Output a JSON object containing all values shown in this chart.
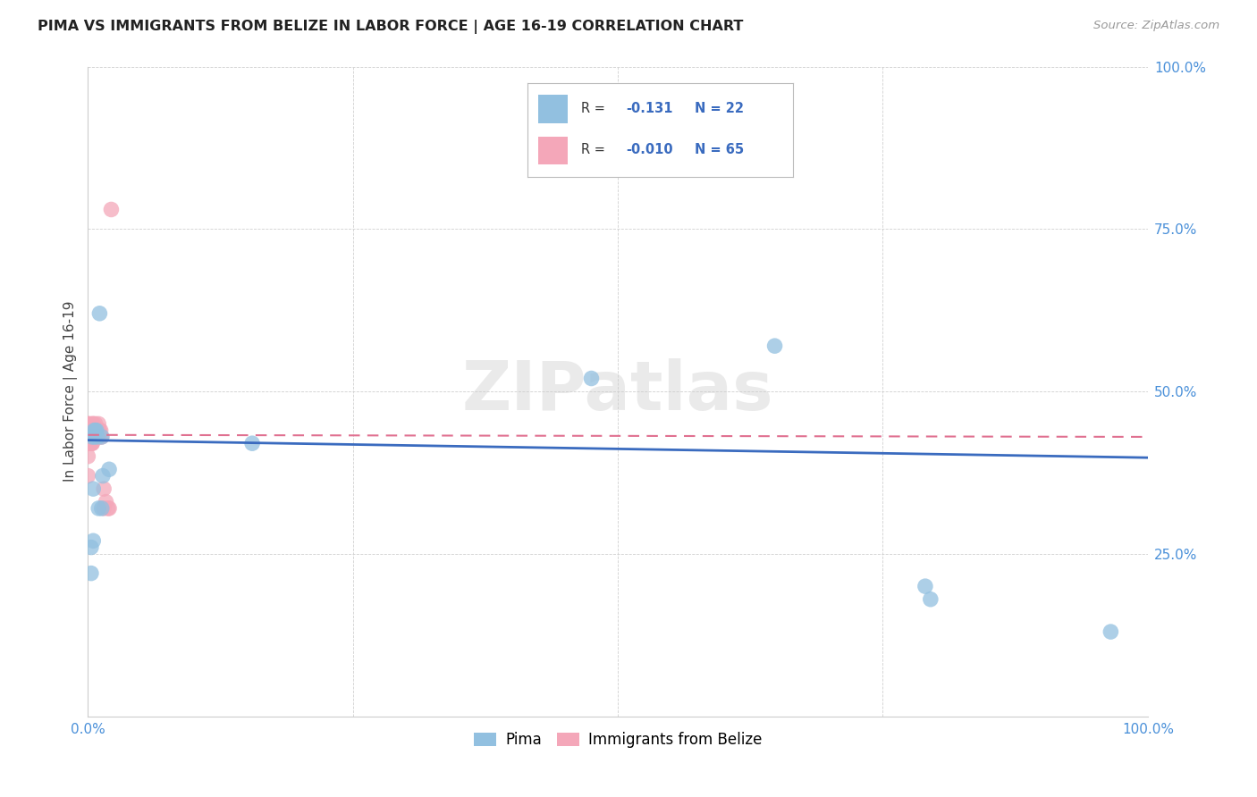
{
  "title": "PIMA VS IMMIGRANTS FROM BELIZE IN LABOR FORCE | AGE 16-19 CORRELATION CHART",
  "source": "Source: ZipAtlas.com",
  "ylabel": "In Labor Force | Age 16-19",
  "xlim": [
    0.0,
    1.0
  ],
  "ylim": [
    0.0,
    1.0
  ],
  "pima_color": "#92c0e0",
  "belize_color": "#f4a7b9",
  "pima_R": -0.131,
  "pima_N": 22,
  "belize_R": -0.01,
  "belize_N": 65,
  "pima_line_color": "#3a6bbf",
  "belize_line_color": "#e07090",
  "background_color": "#ffffff",
  "watermark": "ZIPatlas",
  "pima_x": [
    0.003,
    0.003,
    0.004,
    0.005,
    0.005,
    0.006,
    0.006,
    0.007,
    0.008,
    0.009,
    0.01,
    0.011,
    0.013,
    0.013,
    0.014,
    0.02,
    0.155,
    0.475,
    0.648,
    0.79,
    0.795,
    0.965
  ],
  "pima_y": [
    0.22,
    0.26,
    0.43,
    0.35,
    0.27,
    0.43,
    0.44,
    0.44,
    0.44,
    0.43,
    0.32,
    0.62,
    0.43,
    0.32,
    0.37,
    0.38,
    0.42,
    0.52,
    0.57,
    0.2,
    0.18,
    0.13
  ],
  "belize_x": [
    0.0,
    0.0,
    0.0,
    0.0,
    0.0,
    0.0,
    0.0,
    0.001,
    0.001,
    0.001,
    0.001,
    0.001,
    0.001,
    0.001,
    0.002,
    0.002,
    0.002,
    0.002,
    0.002,
    0.002,
    0.002,
    0.003,
    0.003,
    0.003,
    0.003,
    0.003,
    0.003,
    0.003,
    0.004,
    0.004,
    0.004,
    0.004,
    0.004,
    0.004,
    0.004,
    0.004,
    0.004,
    0.005,
    0.005,
    0.005,
    0.005,
    0.005,
    0.006,
    0.006,
    0.006,
    0.007,
    0.007,
    0.007,
    0.008,
    0.008,
    0.009,
    0.009,
    0.009,
    0.01,
    0.01,
    0.011,
    0.011,
    0.012,
    0.013,
    0.015,
    0.015,
    0.017,
    0.019,
    0.02,
    0.022
  ],
  "belize_y": [
    0.37,
    0.42,
    0.43,
    0.44,
    0.44,
    0.45,
    0.4,
    0.42,
    0.42,
    0.43,
    0.43,
    0.43,
    0.44,
    0.45,
    0.42,
    0.43,
    0.43,
    0.44,
    0.44,
    0.43,
    0.44,
    0.42,
    0.43,
    0.43,
    0.43,
    0.44,
    0.44,
    0.44,
    0.42,
    0.42,
    0.43,
    0.43,
    0.44,
    0.44,
    0.44,
    0.44,
    0.45,
    0.43,
    0.43,
    0.44,
    0.44,
    0.45,
    0.43,
    0.43,
    0.44,
    0.43,
    0.44,
    0.45,
    0.43,
    0.44,
    0.44,
    0.44,
    0.44,
    0.44,
    0.45,
    0.43,
    0.44,
    0.44,
    0.43,
    0.32,
    0.35,
    0.33,
    0.32,
    0.32,
    0.78
  ],
  "pima_line_x0": 0.0,
  "pima_line_x1": 1.0,
  "pima_line_y0": 0.425,
  "pima_line_y1": 0.398,
  "belize_line_x0": 0.0,
  "belize_line_x1": 1.0,
  "belize_line_y0": 0.433,
  "belize_line_y1": 0.43
}
